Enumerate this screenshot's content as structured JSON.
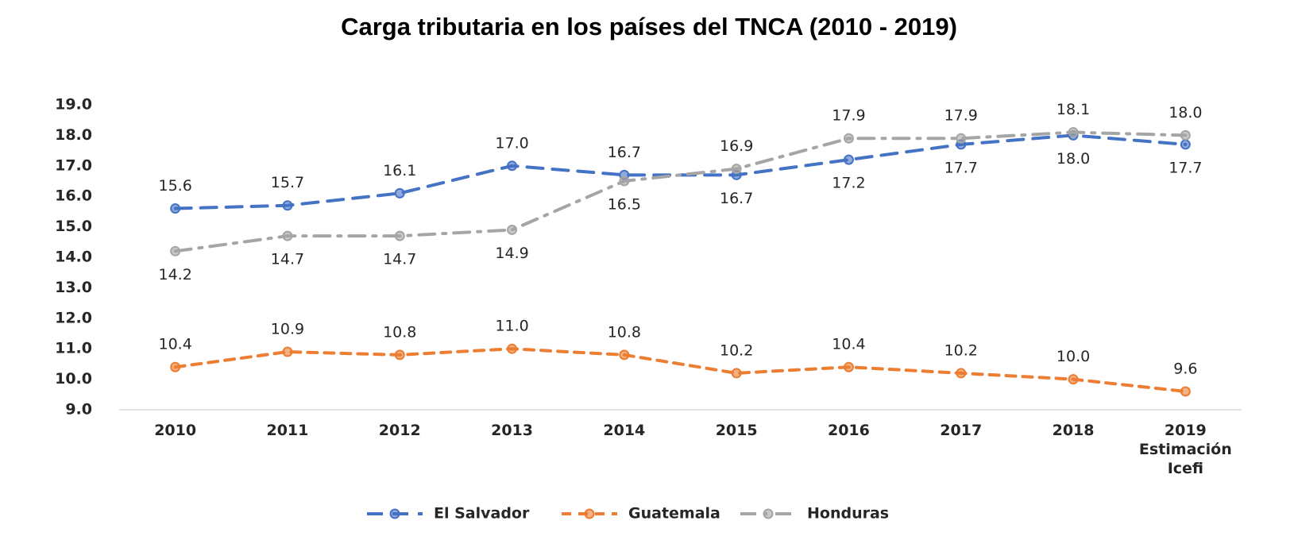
{
  "chart_data": {
    "type": "line",
    "title": "Carga tributaria en los países del TNCA (2010 - 2019)",
    "categories": [
      "2010",
      "2011",
      "2012",
      "2013",
      "2014",
      "2015",
      "2016",
      "2017",
      "2018",
      "2019\nEstimación\nIcefi"
    ],
    "series": [
      {
        "name": "El Salvador",
        "color": "#4472c4",
        "values": [
          15.6,
          15.7,
          16.1,
          17.0,
          16.7,
          16.7,
          17.2,
          17.7,
          18.0,
          17.7
        ],
        "value_labels": [
          "15.6",
          "15.7",
          "16.1",
          "17.0",
          "16.7",
          "16.7",
          "17.2",
          "17.7",
          "18.0",
          "17.7"
        ]
      },
      {
        "name": "Guatemala",
        "color": "#ed7d31",
        "values": [
          10.4,
          10.9,
          10.8,
          11.0,
          10.8,
          10.2,
          10.4,
          10.2,
          10.0,
          9.6
        ],
        "value_labels": [
          "10.4",
          "10.9",
          "10.8",
          "11.0",
          "10.8",
          "10.2",
          "10.4",
          "10.2",
          "10.0",
          "9.6"
        ]
      },
      {
        "name": "Honduras",
        "color": "#a5a5a5",
        "values": [
          14.2,
          14.7,
          14.7,
          14.9,
          16.5,
          16.9,
          17.9,
          17.9,
          18.1,
          18.0
        ],
        "value_labels": [
          "14.2",
          "14.7",
          "14.7",
          "14.9",
          "16.5",
          "16.9",
          "17.9",
          "17.9",
          "18.1",
          "18.0"
        ]
      }
    ],
    "ylim": [
      9,
      19
    ],
    "yticks": [
      {
        "value": 9,
        "label": "9.0"
      },
      {
        "value": 10,
        "label": "10.0"
      },
      {
        "value": 11,
        "label": "11.0"
      },
      {
        "value": 12,
        "label": "12.0"
      },
      {
        "value": 13,
        "label": "13.0"
      },
      {
        "value": 14,
        "label": "14.0"
      },
      {
        "value": 15,
        "label": "15.0"
      },
      {
        "value": 16,
        "label": "16.0"
      },
      {
        "value": 17,
        "label": "17.0"
      },
      {
        "value": 18,
        "label": "18.0"
      },
      {
        "value": 19,
        "label": "19.0"
      }
    ],
    "grid": false,
    "legend": "bottom"
  }
}
